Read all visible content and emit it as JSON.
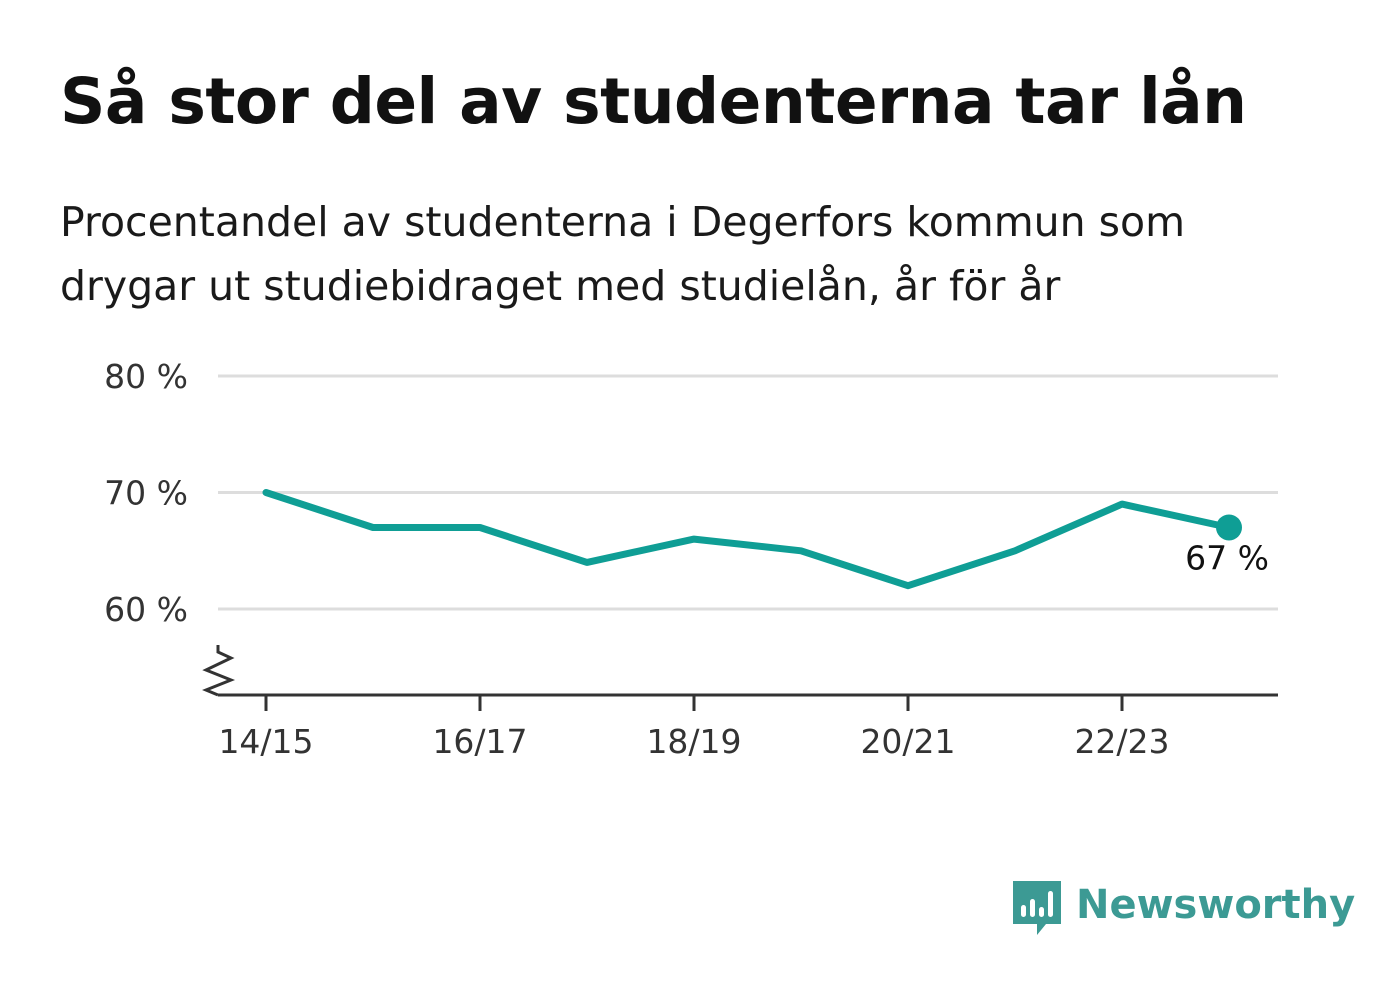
{
  "title": "Så stor del av studenterna tar lån",
  "subtitle": "Procentandel av studenterna i Degerfors kommun som drygar ut studiebidraget med studielån, år för år",
  "brand": {
    "name": "Newsworthy",
    "color": "#3c9a94"
  },
  "chart_data": {
    "type": "line",
    "x": [
      "14/15",
      "15/16",
      "16/17",
      "17/18",
      "18/19",
      "19/20",
      "20/21",
      "21/22",
      "22/23",
      "23/24"
    ],
    "series": [
      {
        "values": [
          70,
          67,
          67,
          64,
          66,
          65,
          62,
          65,
          69,
          67
        ],
        "color": "#0f9e95"
      }
    ],
    "x_tick_labels": [
      "14/15",
      "16/17",
      "18/19",
      "20/21",
      "22/23"
    ],
    "y_ticks": [
      60,
      70,
      80
    ],
    "y_tick_labels": [
      "60 %",
      "70 %",
      "80 %"
    ],
    "ylim": [
      55,
      80
    ],
    "y_axis_break": true,
    "grid": true,
    "end_label": "67 %",
    "colors": {
      "line": "#0f9e95",
      "grid": "#dddddd",
      "axis": "#333333"
    }
  }
}
